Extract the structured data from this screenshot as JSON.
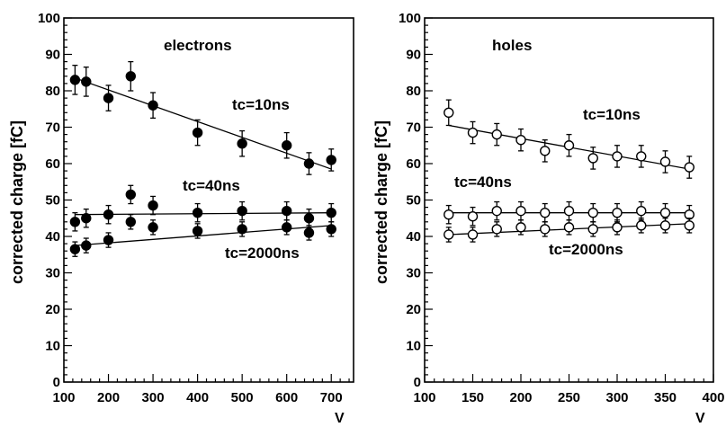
{
  "chart_data": [
    {
      "type": "scatter",
      "panel_title": "electrons",
      "ylabel": "corrected charge [fC]",
      "xlabel": "V",
      "xlim": [
        100,
        750
      ],
      "ylim": [
        0,
        100
      ],
      "x_ticks": [
        100,
        200,
        300,
        400,
        500,
        600,
        700
      ],
      "y_ticks": [
        0,
        10,
        20,
        30,
        40,
        50,
        60,
        70,
        80,
        90,
        100
      ],
      "marker": "filled-circle",
      "series": [
        {
          "name": "tc=10ns",
          "x": [
            125,
            150,
            200,
            250,
            300,
            400,
            500,
            600,
            650,
            700
          ],
          "y": [
            83,
            82.5,
            78,
            84,
            76,
            68.5,
            65.5,
            65,
            60,
            61
          ],
          "err": [
            4,
            4,
            3.5,
            4,
            3.5,
            3.5,
            3.5,
            3.5,
            3,
            3
          ],
          "fit": [
            [
              125,
              83.5
            ],
            [
              700,
              58.5
            ]
          ]
        },
        {
          "name": "tc=40ns",
          "x": [
            125,
            150,
            200,
            250,
            300,
            400,
            500,
            600,
            650,
            700
          ],
          "y": [
            44,
            45,
            46,
            51.5,
            48.5,
            46.5,
            47,
            47,
            45,
            46.5
          ],
          "err": [
            2.5,
            2.5,
            2.5,
            2.5,
            2.5,
            2.5,
            2.5,
            2.5,
            2.5,
            2.5
          ],
          "fit": [
            [
              125,
              46
            ],
            [
              700,
              46.5
            ]
          ]
        },
        {
          "name": "tc=2000ns",
          "x": [
            125,
            150,
            200,
            250,
            300,
            400,
            500,
            600,
            650,
            700
          ],
          "y": [
            36.5,
            37.5,
            39,
            44,
            42.5,
            41.5,
            42,
            42.5,
            41,
            42
          ],
          "err": [
            2,
            2,
            2,
            2,
            2,
            2,
            2,
            2,
            2,
            2
          ],
          "fit": [
            [
              125,
              37.5
            ],
            [
              700,
              43
            ]
          ]
        }
      ]
    },
    {
      "type": "scatter",
      "panel_title": "holes",
      "ylabel": "corrected charge [fC]",
      "xlabel": "V",
      "xlim": [
        100,
        400
      ],
      "ylim": [
        0,
        100
      ],
      "x_ticks": [
        100,
        150,
        200,
        250,
        300,
        350,
        400
      ],
      "y_ticks": [
        0,
        10,
        20,
        30,
        40,
        50,
        60,
        70,
        80,
        90,
        100
      ],
      "marker": "open-circle",
      "series": [
        {
          "name": "tc=10ns",
          "x": [
            125,
            150,
            175,
            200,
            225,
            250,
            275,
            300,
            325,
            350,
            375
          ],
          "y": [
            74,
            68.5,
            68,
            66.5,
            63.5,
            65,
            61.5,
            62,
            62,
            60.5,
            59
          ],
          "err": [
            3.5,
            3,
            3,
            3,
            3,
            3,
            3,
            3,
            3,
            3,
            3
          ],
          "fit": [
            [
              125,
              70.5
            ],
            [
              375,
              58.5
            ]
          ]
        },
        {
          "name": "tc=40ns",
          "x": [
            125,
            150,
            175,
            200,
            225,
            250,
            275,
            300,
            325,
            350,
            375
          ],
          "y": [
            46,
            45.5,
            47,
            47,
            46.5,
            47,
            46.5,
            46.5,
            47,
            46.5,
            46
          ],
          "err": [
            2.5,
            2.5,
            2.5,
            2.5,
            2.5,
            2.5,
            2.5,
            2.5,
            2.5,
            2.5,
            2.5
          ],
          "fit": [
            [
              125,
              46.5
            ],
            [
              375,
              46.5
            ]
          ]
        },
        {
          "name": "tc=2000ns",
          "x": [
            125,
            150,
            175,
            200,
            225,
            250,
            275,
            300,
            325,
            350,
            375
          ],
          "y": [
            40.5,
            40.5,
            42,
            42.5,
            42,
            42.5,
            42,
            42.5,
            43,
            43,
            43
          ],
          "err": [
            2,
            2,
            2,
            2,
            2,
            2,
            2,
            2,
            2,
            2,
            2
          ],
          "fit": [
            [
              125,
              40.5
            ],
            [
              375,
              43.5
            ]
          ]
        }
      ]
    }
  ]
}
